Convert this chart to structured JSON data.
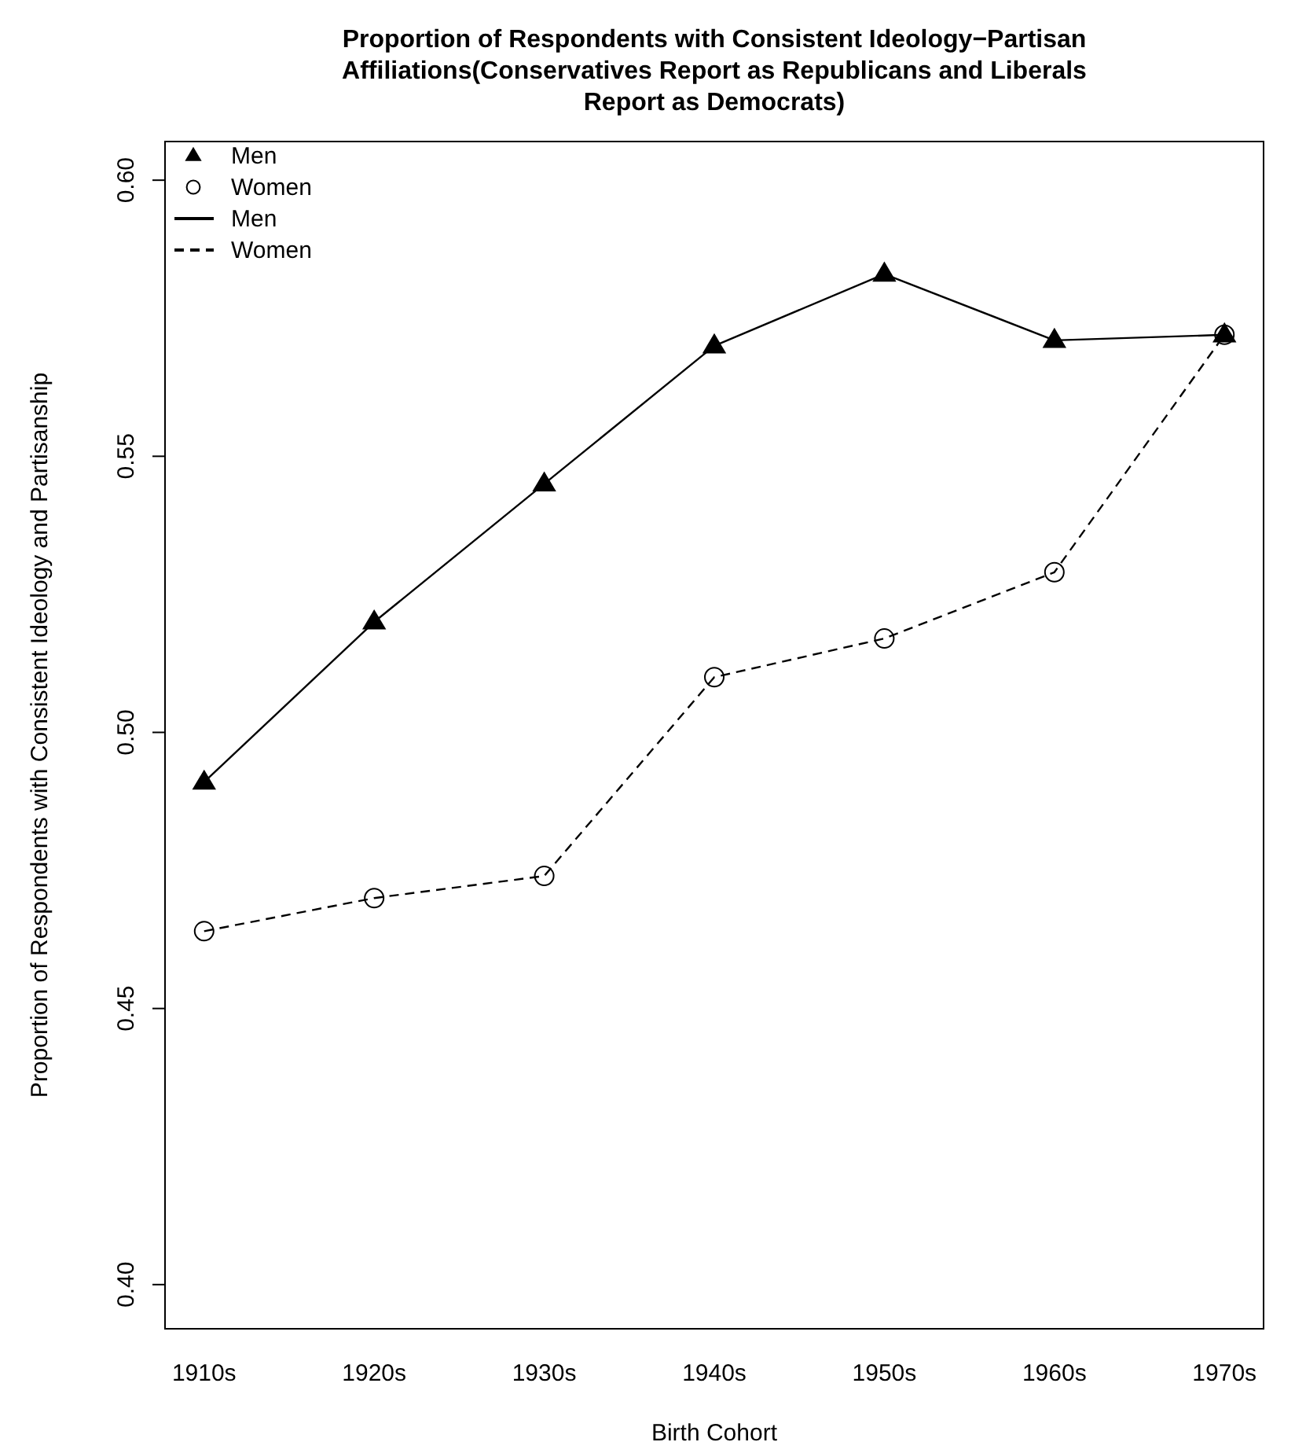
{
  "chart_data": {
    "type": "line",
    "title": "Proportion of Respondents with Consistent Ideology−Partisan Affiliations(Conservatives Report as Republicans and Liberals Report as Democrats)",
    "xlabel": "Birth Cohort",
    "ylabel": "Proportion of Respondents with Consistent Ideology and Partisanship",
    "categories": [
      "1910s",
      "1920s",
      "1930s",
      "1940s",
      "1950s",
      "1960s",
      "1970s"
    ],
    "series": [
      {
        "name": "Men",
        "color": "#000000",
        "marker": "triangle",
        "line_style": "solid",
        "values": [
          0.491,
          0.52,
          0.545,
          0.57,
          0.583,
          0.571,
          0.572
        ]
      },
      {
        "name": "Women",
        "color": "#000000",
        "marker": "circle",
        "line_style": "dashed",
        "values": [
          0.464,
          0.47,
          0.474,
          0.51,
          0.517,
          0.529,
          0.572
        ]
      }
    ],
    "ylim": [
      0.392,
      0.607
    ],
    "yticks": [
      {
        "value": 0.4,
        "label": "0.40"
      },
      0.45,
      {
        "value": 0.5,
        "label": "0.50"
      },
      0.55,
      {
        "value": 0.6,
        "label": "0.60"
      }
    ],
    "legend": "top left",
    "grid": false
  }
}
